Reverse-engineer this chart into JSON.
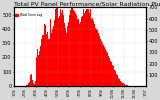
{
  "title": "Total PV Panel Performance/Solar Radiation Plus Min/Max/Avg 1.0w",
  "bg_color": "#d8d8d8",
  "plot_bg_color": "#ffffff",
  "bar_color": "#ff0000",
  "line_color": "#0000ff",
  "dot_color": "#0000ff",
  "grid_color": "#aaaaaa",
  "ylim_left": [
    0,
    550
  ],
  "ylim_right": [
    0,
    700
  ],
  "yticks_left": [
    0,
    100,
    200,
    300,
    400,
    500
  ],
  "yticks_right": [
    100,
    200,
    300,
    400,
    500,
    600,
    700
  ],
  "title_fontsize": 4.5,
  "tick_fontsize": 3.5,
  "legend_label": "Watt 5min avg",
  "n_bars": 200,
  "bar_values": [
    0,
    0,
    0,
    0,
    1,
    2,
    1,
    0,
    0,
    0,
    0,
    0,
    0,
    0,
    0,
    0,
    1,
    2,
    3,
    5,
    8,
    12,
    18,
    25,
    35,
    50,
    60,
    45,
    30,
    20,
    15,
    10,
    25,
    80,
    120,
    160,
    180,
    200,
    220,
    240,
    260,
    280,
    300,
    320,
    340,
    360,
    380,
    400,
    380,
    360,
    340,
    320,
    300,
    280,
    300,
    320,
    340,
    360,
    380,
    400,
    420,
    440,
    460,
    480,
    500,
    480,
    460,
    440,
    460,
    480,
    500,
    520,
    500,
    480,
    460,
    440,
    420,
    400,
    380,
    360,
    380,
    400,
    420,
    440,
    460,
    480,
    500,
    520,
    530,
    520,
    510,
    500,
    490,
    480,
    470,
    460,
    450,
    440,
    430,
    420,
    430,
    440,
    450,
    460,
    470,
    480,
    490,
    500,
    510,
    520,
    530,
    520,
    510,
    500,
    490,
    480,
    470,
    460,
    450,
    440,
    430,
    420,
    410,
    400,
    390,
    380,
    370,
    360,
    350,
    340,
    330,
    320,
    310,
    300,
    290,
    280,
    270,
    260,
    250,
    240,
    230,
    220,
    210,
    200,
    190,
    180,
    170,
    160,
    150,
    140,
    130,
    120,
    110,
    100,
    90,
    80,
    70,
    60,
    50,
    40,
    35,
    30,
    25,
    20,
    18,
    15,
    12,
    10,
    8,
    6,
    5,
    4,
    3,
    2,
    1,
    1,
    0,
    0,
    0,
    0,
    0,
    0,
    0,
    0,
    0,
    0,
    0,
    0,
    0,
    0,
    0,
    0,
    0,
    0,
    0,
    0,
    0,
    0,
    0,
    0
  ],
  "bar_noise": [
    0,
    0,
    0,
    0,
    0,
    0,
    0,
    0,
    0,
    0,
    0,
    0,
    0,
    0,
    0,
    0,
    0,
    0,
    0,
    0,
    0,
    0,
    0,
    0,
    10,
    20,
    30,
    15,
    10,
    5,
    5,
    5,
    15,
    40,
    60,
    80,
    40,
    30,
    20,
    10,
    30,
    50,
    70,
    30,
    20,
    40,
    60,
    30,
    20,
    10,
    30,
    50,
    20,
    40,
    60,
    30,
    50,
    70,
    30,
    20,
    50,
    30,
    20,
    40,
    60,
    80,
    40,
    30,
    50,
    40,
    30,
    50,
    20,
    40,
    30,
    50,
    20,
    40,
    30,
    20,
    40,
    20,
    30,
    50,
    40,
    60,
    30,
    50,
    30,
    20,
    30,
    20,
    10,
    30,
    20,
    10,
    20,
    30,
    10,
    20,
    30,
    20,
    40,
    30,
    20,
    30,
    20,
    30,
    20,
    30,
    40,
    30,
    20,
    30,
    20,
    10,
    20,
    10,
    20,
    10,
    20,
    10,
    20,
    10,
    15,
    10,
    15,
    10,
    10,
    10,
    10,
    15,
    10,
    10,
    10,
    10,
    10,
    10,
    10,
    10,
    10,
    10,
    10,
    10,
    5,
    5,
    5,
    5,
    5,
    5,
    5,
    5,
    5,
    5,
    5,
    5,
    5,
    5,
    5,
    5,
    3,
    3,
    3,
    2,
    2,
    2,
    2,
    2,
    2,
    2,
    1,
    1,
    1,
    1,
    1,
    1,
    0,
    0,
    0,
    0,
    0,
    0,
    0,
    0,
    0,
    0,
    0,
    0,
    0,
    0,
    0,
    0,
    0,
    0,
    0,
    0,
    0,
    0,
    0,
    0
  ],
  "blue_values": [
    0,
    0,
    0,
    0,
    0,
    0,
    0,
    0,
    0,
    0,
    0,
    0,
    0,
    0,
    0,
    0,
    0,
    0,
    0,
    0,
    0,
    0,
    0,
    0,
    1,
    1,
    2,
    1,
    1,
    1,
    1,
    1,
    2,
    4,
    6,
    8,
    9,
    10,
    12,
    14,
    16,
    18,
    20,
    22,
    24,
    26,
    28,
    30,
    28,
    26,
    24,
    22,
    20,
    18,
    20,
    22,
    24,
    26,
    28,
    30,
    32,
    34,
    36,
    38,
    40,
    38,
    36,
    34,
    36,
    38,
    40,
    42,
    40,
    38,
    36,
    34,
    32,
    30,
    28,
    26,
    28,
    30,
    32,
    34,
    36,
    38,
    40,
    42,
    44,
    42,
    40,
    38,
    36,
    34,
    32,
    30,
    28,
    26,
    24,
    22,
    24,
    26,
    28,
    30,
    32,
    34,
    36,
    38,
    40,
    42,
    44,
    42,
    40,
    38,
    36,
    34,
    32,
    30,
    28,
    26,
    24,
    22,
    20,
    18,
    16,
    14,
    12,
    10,
    9,
    8,
    7,
    6,
    5,
    4,
    3,
    2,
    2,
    2,
    1,
    1,
    1,
    1,
    1,
    1,
    1,
    0,
    0,
    0,
    0,
    0,
    0,
    0,
    0,
    0,
    0,
    0,
    0,
    0,
    0,
    0,
    0,
    0,
    0,
    0,
    0,
    0,
    0,
    0,
    0,
    0,
    0,
    0,
    0,
    0,
    0,
    0,
    0,
    0,
    0,
    0,
    0,
    0,
    0,
    0,
    0,
    0,
    0,
    0,
    0,
    0,
    0,
    0,
    0,
    0,
    0,
    0,
    0,
    0,
    0,
    0
  ],
  "xtick_labels": [
    "1/06",
    "2/06",
    "3/06",
    "4/06",
    "5/06",
    "6/06",
    "7/06",
    "8/06",
    "9/06",
    "10/06",
    "11/06",
    "12/06",
    "1/07"
  ],
  "n_xticks": 13
}
